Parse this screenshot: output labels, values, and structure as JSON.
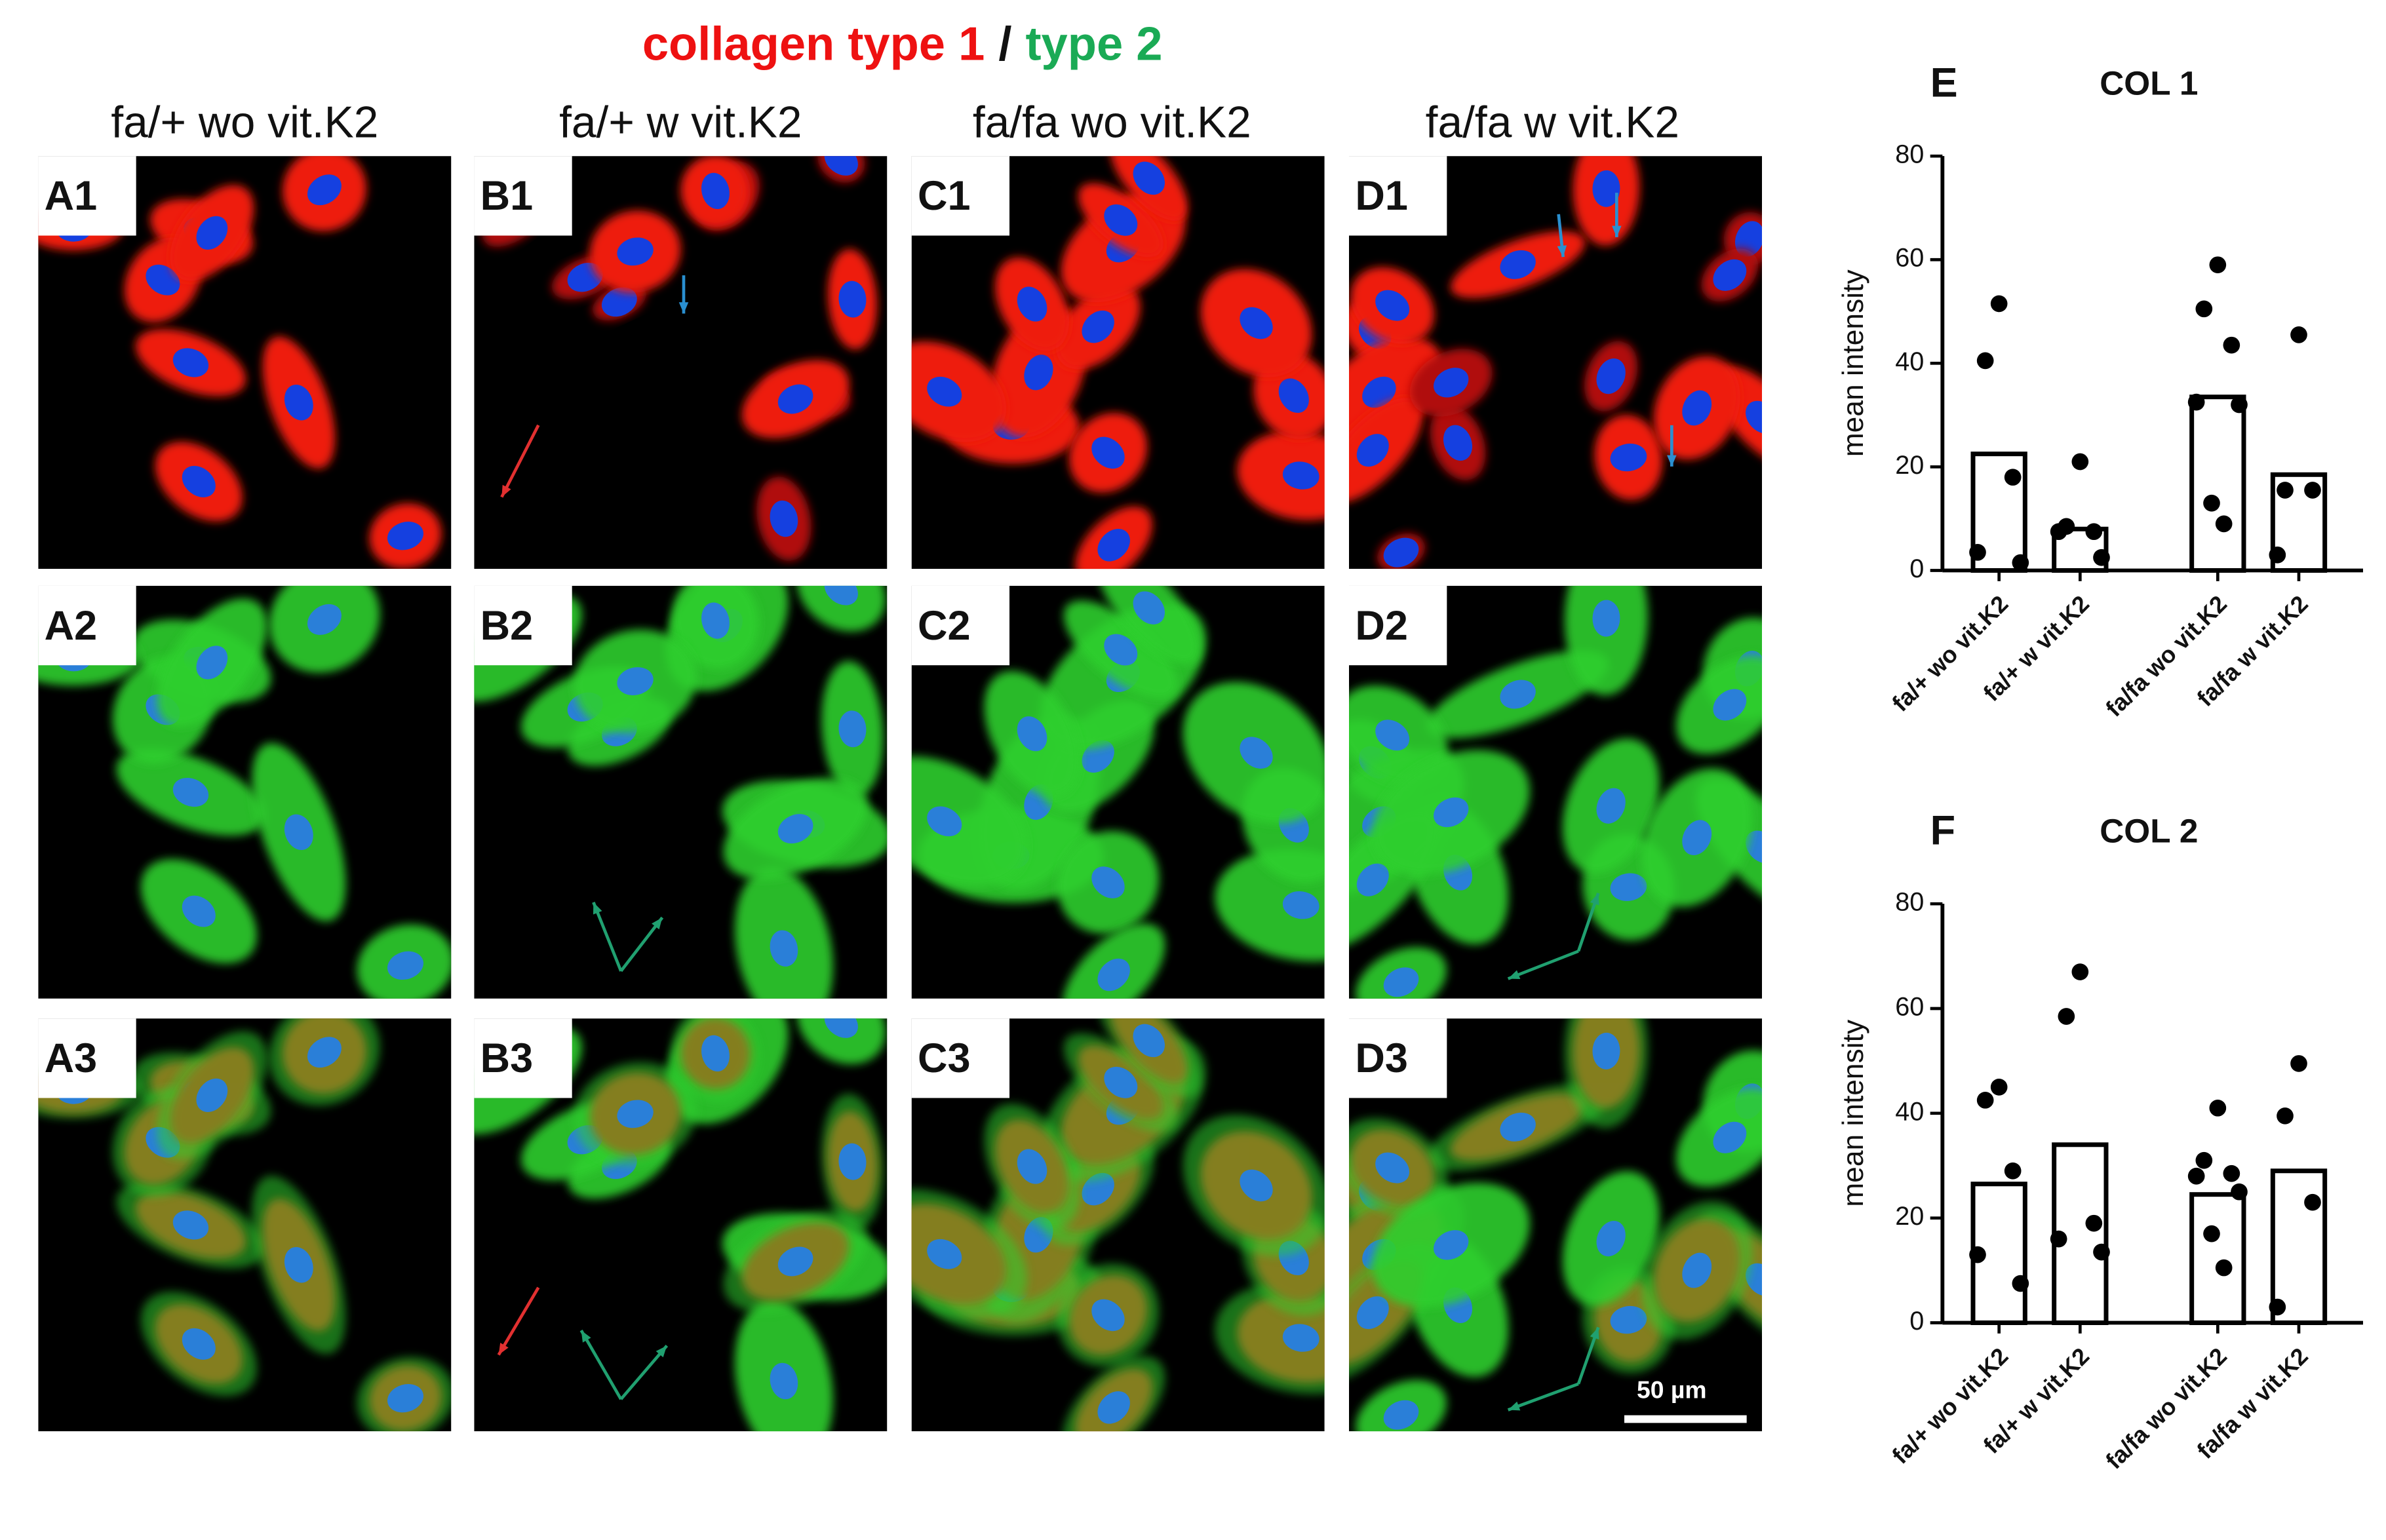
{
  "title": {
    "part1": "collagen type 1",
    "sep": "/",
    "part2": "type 2"
  },
  "columns": [
    "fa/+ wo vit.K2",
    "fa/+ w vit.K2",
    "fa/fa wo vit.K2",
    "fa/fa w vit.K2"
  ],
  "panels": [
    [
      "A1",
      "A2",
      "A3"
    ],
    [
      "B1",
      "B2",
      "B3"
    ],
    [
      "C1",
      "C2",
      "C3"
    ],
    [
      "D1",
      "D2",
      "D3"
    ]
  ],
  "scale_bar": "50 µm",
  "chart_data": [
    {
      "type": "bar",
      "panel": "E",
      "title": "COL 1",
      "y_label": "mean intensity",
      "categories": [
        "fa/+ wo vit.K2",
        "fa/+ w vit.K2",
        "fa/fa wo vit.K2",
        "fa/fa w vit.K2"
      ],
      "values": [
        22.5,
        8,
        33.5,
        18.5
      ],
      "points": [
        [
          51.5,
          40.5,
          18,
          3.5,
          1.5
        ],
        [
          21,
          8.5,
          7.5,
          7.5,
          2.5
        ],
        [
          59,
          50.5,
          43.5,
          32.5,
          32,
          13,
          9
        ],
        [
          45.5,
          15.5,
          15.5,
          3
        ]
      ],
      "color": "#000000",
      "ylim": [
        0,
        80
      ],
      "yticks": [
        0,
        20,
        40,
        60,
        80
      ]
    },
    {
      "type": "bar",
      "panel": "F",
      "title": "COL 2",
      "y_label": "mean intensity",
      "categories": [
        "fa/+ wo vit.K2",
        "fa/+ w vit.K2",
        "fa/fa wo vit.K2",
        "fa/fa w vit.K2"
      ],
      "values": [
        26.5,
        34,
        24.5,
        29
      ],
      "points": [
        [
          45,
          42.5,
          29,
          13,
          7.5
        ],
        [
          67,
          58.5,
          19,
          16,
          13.5
        ],
        [
          41,
          31,
          28.5,
          28,
          25,
          17,
          10.5
        ],
        [
          49.5,
          39.5,
          23,
          3
        ]
      ],
      "color": "#000000",
      "ylim": [
        0,
        80
      ],
      "yticks": [
        0,
        20,
        40,
        60,
        80
      ]
    }
  ]
}
